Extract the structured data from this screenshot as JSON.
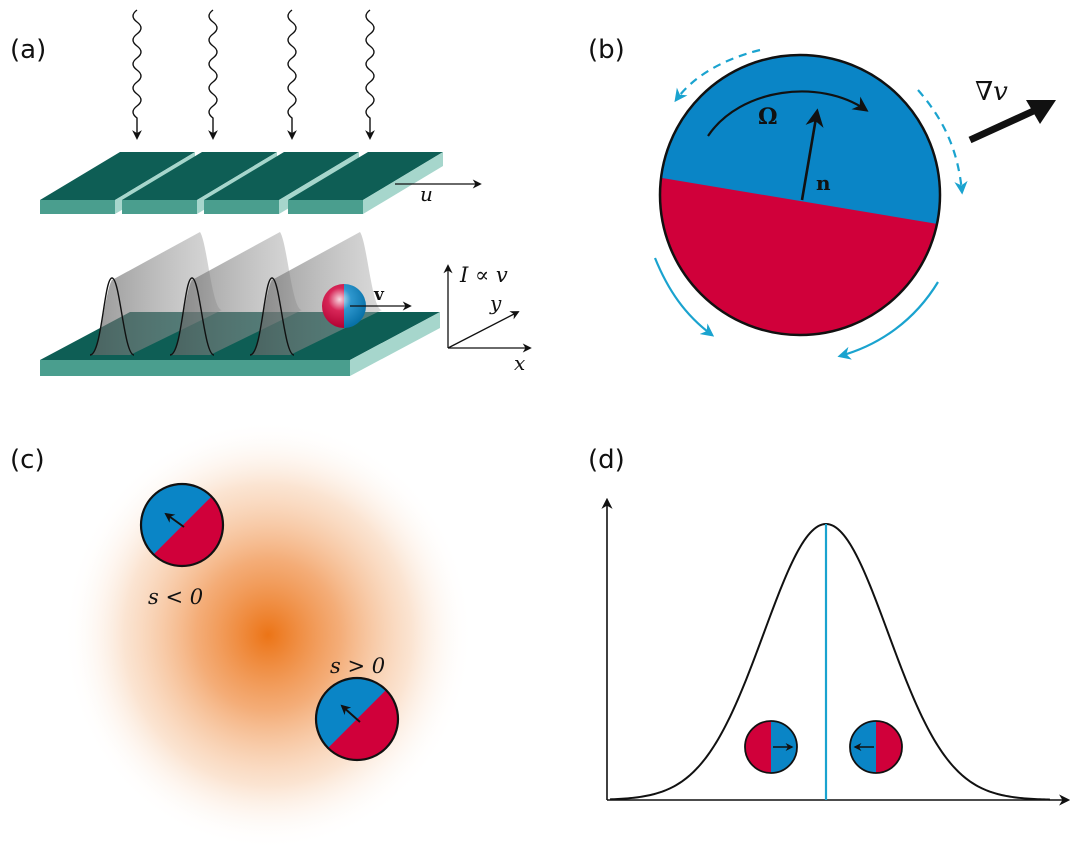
{
  "colors": {
    "blue": "#0a85c6",
    "red": "#d0003a",
    "cyan_arrow": "#1aa3cf",
    "teal_top": "#0e5e55",
    "teal_side": "#4a9e8e",
    "teal_edge": "#a6d6cc",
    "orange": "#ee7a1e",
    "ink": "#111111"
  },
  "panels": {
    "a": {
      "label": "(a)",
      "u_label": "u",
      "v_label": "v",
      "intensity_label": "I ∝ v",
      "y_label": "y",
      "x_label": "x"
    },
    "b": {
      "label": "(b)",
      "omega_label": "Ω",
      "n_label": "n",
      "grad_label": "∇v"
    },
    "c": {
      "label": "(c)",
      "s_neg_label": "s < 0",
      "s_pos_label": "s > 0"
    },
    "d": {
      "label": "(d)"
    }
  }
}
